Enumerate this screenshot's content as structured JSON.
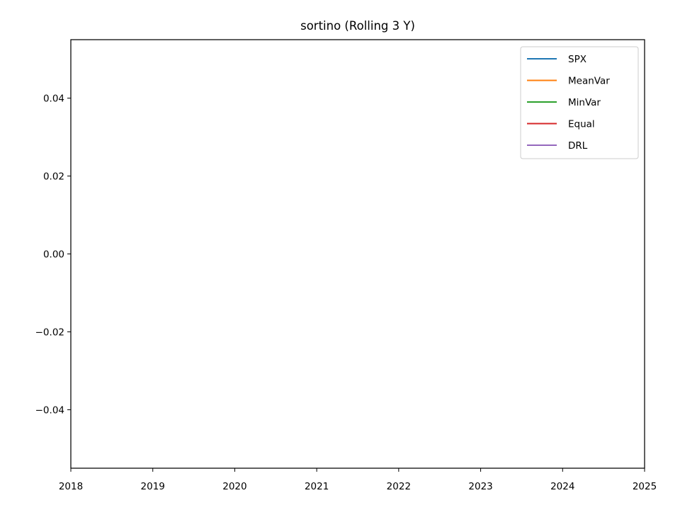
{
  "chart_data": {
    "type": "line",
    "title": "sortino (Rolling 3 Y)",
    "xlabel": "",
    "ylabel": "",
    "xlim": [
      2018,
      2025
    ],
    "ylim": [
      -0.055,
      0.055
    ],
    "x_ticks": [
      2018,
      2019,
      2020,
      2021,
      2022,
      2023,
      2024,
      2025
    ],
    "x_tick_labels": [
      "2018",
      "2019",
      "2020",
      "2021",
      "2022",
      "2023",
      "2024",
      "2025"
    ],
    "y_ticks": [
      -0.04,
      -0.02,
      0.0,
      0.02,
      0.04
    ],
    "y_tick_labels": [
      "−0.04",
      "−0.02",
      "0.00",
      "0.02",
      "0.04"
    ],
    "grid": false,
    "legend_position": "top-right",
    "series": [
      {
        "name": "SPX",
        "color": "#1f77b4",
        "x": [],
        "values": []
      },
      {
        "name": "MeanVar",
        "color": "#ff7f0e",
        "x": [],
        "values": []
      },
      {
        "name": "MinVar",
        "color": "#2ca02c",
        "x": [],
        "values": []
      },
      {
        "name": "Equal",
        "color": "#d62728",
        "x": [],
        "values": []
      },
      {
        "name": "DRL",
        "color": "#9467bd",
        "x": [],
        "values": []
      }
    ]
  }
}
